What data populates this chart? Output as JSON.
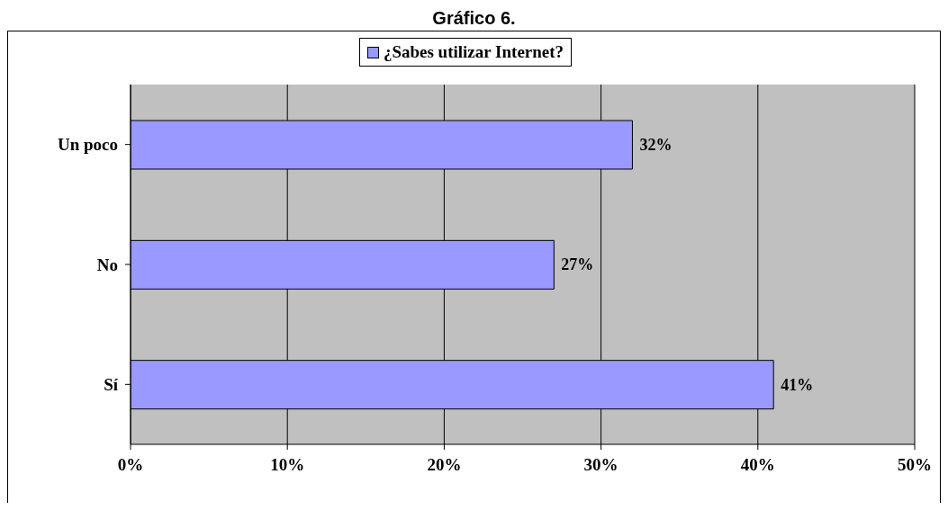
{
  "chart_data": {
    "type": "bar",
    "orientation": "horizontal",
    "title": "Gráfico 6.",
    "categories": [
      "Un poco",
      "No",
      "Sí"
    ],
    "series": [
      {
        "name": "¿Sabes utilizar Internet?",
        "color": "#9999ff",
        "values": [
          32,
          27,
          41
        ],
        "value_labels": [
          "32%",
          "27%",
          "41%"
        ]
      }
    ],
    "xlim": [
      0,
      50
    ],
    "xticks": [
      {
        "value": 0,
        "label": "0%"
      },
      {
        "value": 10,
        "label": "10%"
      },
      {
        "value": 20,
        "label": "20%"
      },
      {
        "value": 30,
        "label": "30%"
      },
      {
        "value": 40,
        "label": "40%"
      },
      {
        "value": 50,
        "label": "50%"
      }
    ],
    "grid": "x",
    "legend": "top"
  }
}
